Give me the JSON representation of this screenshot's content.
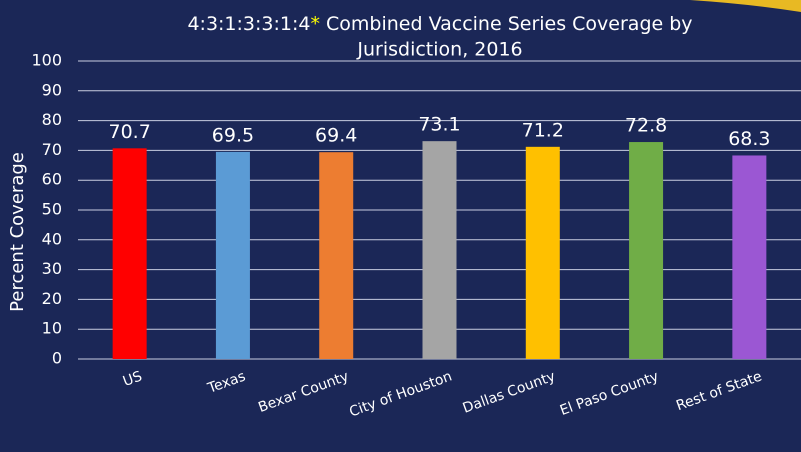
{
  "chart_data": {
    "type": "bar",
    "title": [
      "4:3:1:3:3:1:4",
      "*",
      " Combined Vaccine Series Coverage by",
      "Jurisdiction, 2016"
    ],
    "y_label": "Percent Coverage",
    "categories": [
      "US",
      "Texas",
      "Bexar County",
      "City of Houston",
      "Dallas County",
      "El Paso County",
      "Rest of State"
    ],
    "values": [
      70.7,
      69.5,
      69.4,
      73.1,
      71.2,
      72.8,
      68.3
    ],
    "colors": [
      "#ff0000",
      "#5b9bd5",
      "#ed7d31",
      "#a5a5a5",
      "#ffc000",
      "#70ad47",
      "#9b57d3"
    ],
    "title_mark_color": "#ffff00",
    "ylim": [
      0,
      100
    ],
    "yticks": [
      0,
      10,
      20,
      30,
      40,
      50,
      60,
      70,
      80,
      90,
      100
    ],
    "grid": true
  }
}
